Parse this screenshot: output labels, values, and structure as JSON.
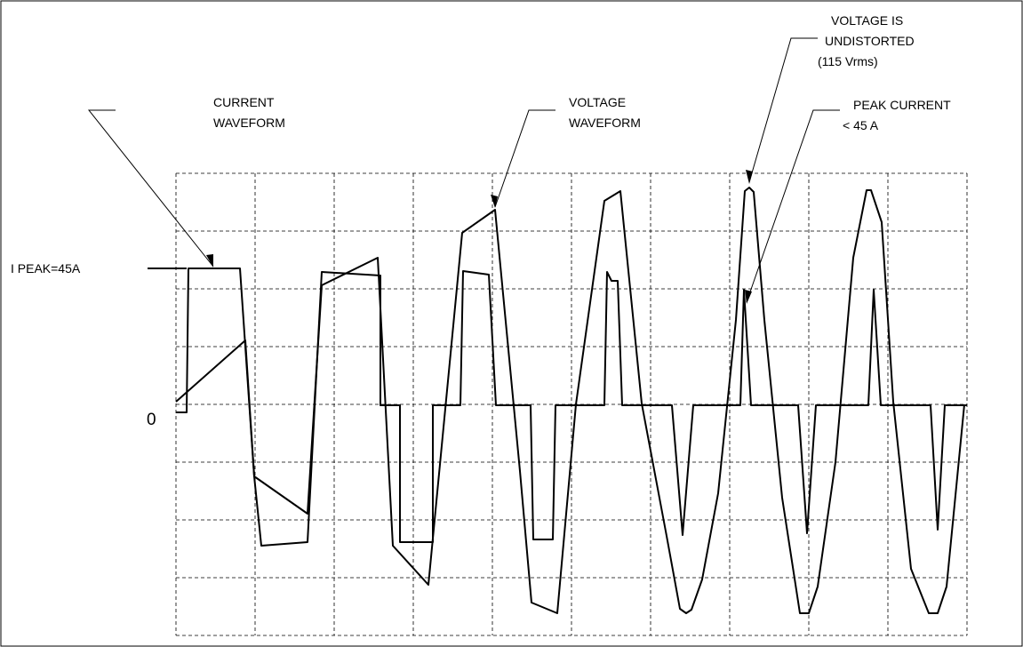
{
  "labels": {
    "current_waveform": [
      "CURRENT",
      "WAVEFORM"
    ],
    "voltage_waveform": [
      "VOLTAGE",
      "WAVEFORM"
    ],
    "voltage_undistorted": [
      "VOLTAGE IS",
      "UNDISTORTED",
      "(115 Vrms)"
    ],
    "peak_current": [
      "PEAK CURRENT",
      "< 45 A"
    ],
    "i_peak": "I PEAK=45A",
    "zero": "0"
  },
  "colors": {
    "line": "#000000",
    "grid": "#000000",
    "background": "#ffffff"
  },
  "grid": {
    "style": "dashed",
    "columns": 10,
    "rows": 8
  },
  "waveforms": {
    "current": {
      "name": "current-waveform",
      "peak": "45 A"
    },
    "voltage": {
      "name": "voltage-waveform",
      "rms": "115 Vrms"
    }
  }
}
